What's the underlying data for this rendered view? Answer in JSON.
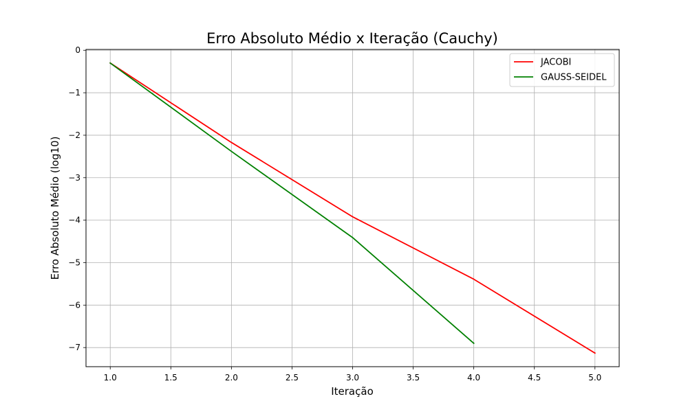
{
  "chart_data": {
    "type": "line",
    "title": "Erro Absoluto Médio x Iteração (Cauchy)",
    "xlabel": "Iteração",
    "ylabel": "Erro Absoluto Médio (log10)",
    "xlim": [
      0.8,
      5.2
    ],
    "ylim": [
      -7.45,
      0.02
    ],
    "xticks": [
      1.0,
      1.5,
      2.0,
      2.5,
      3.0,
      3.5,
      4.0,
      4.5,
      5.0
    ],
    "xtick_labels": [
      "1.0",
      "1.5",
      "2.0",
      "2.5",
      "3.0",
      "3.5",
      "4.0",
      "4.5",
      "5.0"
    ],
    "yticks": [
      0,
      -1,
      -2,
      -3,
      -4,
      -5,
      -6,
      -7
    ],
    "ytick_labels": [
      "0",
      "−1",
      "−2",
      "−3",
      "−4",
      "−5",
      "−6",
      "−7"
    ],
    "grid": true,
    "legend_position": "top-right",
    "series": [
      {
        "name": "JACOBI",
        "color": "#ff0000",
        "x": [
          1,
          2,
          3,
          4,
          5
        ],
        "y": [
          -0.3,
          -2.17,
          -3.92,
          -5.39,
          -7.13
        ]
      },
      {
        "name": "GAUSS-SEIDEL",
        "color": "#008000",
        "x": [
          1,
          2,
          3,
          4
        ],
        "y": [
          -0.3,
          -2.38,
          -4.41,
          -6.9
        ]
      }
    ]
  }
}
